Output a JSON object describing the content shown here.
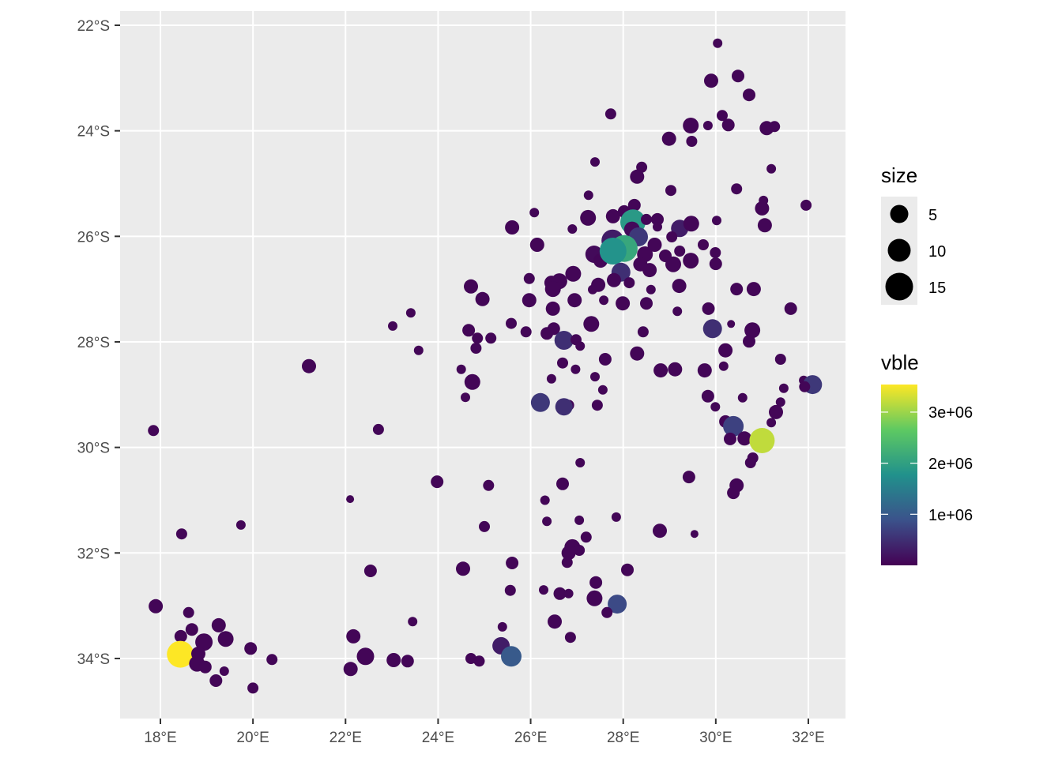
{
  "chart_data": {
    "type": "scatter",
    "title": "",
    "xlabel": "",
    "ylabel": "",
    "xlim": [
      17.15,
      32.8
    ],
    "ylim": [
      -35.15,
      -21.73
    ],
    "grid": true,
    "x_ticks": [
      18,
      20,
      22,
      24,
      26,
      28,
      30,
      32
    ],
    "x_tick_labels": [
      "18°E",
      "20°E",
      "22°E",
      "24°E",
      "26°E",
      "28°E",
      "30°E",
      "32°E"
    ],
    "y_ticks": [
      -22,
      -24,
      -26,
      -28,
      -30,
      -32,
      -34
    ],
    "y_tick_labels": [
      "22°S",
      "24°S",
      "26°S",
      "28°S",
      "30°S",
      "32°S",
      "34°S"
    ],
    "legend_position": "right",
    "size_legend": {
      "title": "size",
      "breaks": [
        5,
        10,
        15
      ],
      "labels": [
        "5",
        "10",
        "15"
      ]
    },
    "color_legend": {
      "title": "vble",
      "breaks": [
        1000000,
        2000000,
        3000000
      ],
      "labels": [
        "1e+06",
        "2e+06",
        "3e+06"
      ],
      "limits": [
        0,
        3540000
      ],
      "palette": [
        "#440154",
        "#3B528B",
        "#21918C",
        "#5EC962",
        "#FDE725"
      ]
    },
    "point_fields": [
      "lon",
      "lat",
      "size",
      "vble"
    ],
    "points": [
      [
        30.04,
        -22.34,
        1,
        50000
      ],
      [
        29.9,
        -23.05,
        3.25,
        50000
      ],
      [
        30.48,
        -22.96,
        2.4,
        50000
      ],
      [
        30.72,
        -23.32,
        2.4,
        50000
      ],
      [
        27.73,
        -23.68,
        1.65,
        50000
      ],
      [
        29.46,
        -23.9,
        4.2,
        50000
      ],
      [
        29.83,
        -23.9,
        1,
        50000
      ],
      [
        30.14,
        -23.71,
        1.65,
        50000
      ],
      [
        30.27,
        -23.89,
        2.4,
        50000
      ],
      [
        31.1,
        -23.95,
        3.25,
        50000
      ],
      [
        31.27,
        -23.92,
        1.65,
        50000
      ],
      [
        28.99,
        -24.15,
        3.25,
        50000
      ],
      [
        29.48,
        -24.2,
        1.65,
        50000
      ],
      [
        27.39,
        -24.59,
        1,
        50000
      ],
      [
        28.4,
        -24.69,
        1.65,
        50000
      ],
      [
        28.3,
        -24.87,
        3.25,
        50000
      ],
      [
        31.2,
        -24.72,
        1,
        50000
      ],
      [
        29.03,
        -25.13,
        1.65,
        50000
      ],
      [
        30.45,
        -25.1,
        1.65,
        50000
      ],
      [
        27.25,
        -25.22,
        1,
        50000
      ],
      [
        31.03,
        -25.32,
        1,
        50000
      ],
      [
        31.0,
        -25.47,
        3.25,
        50000
      ],
      [
        31.95,
        -25.41,
        1.65,
        50000
      ],
      [
        26.08,
        -25.55,
        1,
        50000
      ],
      [
        27.24,
        -25.65,
        4.2,
        50000
      ],
      [
        27.78,
        -25.62,
        3.25,
        50000
      ],
      [
        28.02,
        -25.53,
        2.4,
        50000
      ],
      [
        28.24,
        -25.41,
        2.4,
        50000
      ],
      [
        28.21,
        -25.73,
        12,
        1900000
      ],
      [
        28.5,
        -25.68,
        1.65,
        50000
      ],
      [
        28.74,
        -25.68,
        2.4,
        50000
      ],
      [
        29.22,
        -25.85,
        5.25,
        300000
      ],
      [
        29.47,
        -25.76,
        4.2,
        50000
      ],
      [
        30.02,
        -25.7,
        1,
        50000
      ],
      [
        31.06,
        -25.79,
        3.25,
        50000
      ],
      [
        25.6,
        -25.83,
        3.25,
        50000
      ],
      [
        26.9,
        -25.86,
        1,
        50000
      ],
      [
        28.19,
        -25.87,
        4.2,
        100000
      ],
      [
        28.74,
        -25.82,
        1,
        50000
      ],
      [
        28.33,
        -26.01,
        6.4,
        600000
      ],
      [
        27.77,
        -26.08,
        9,
        300000
      ],
      [
        26.14,
        -26.16,
        3.25,
        50000
      ],
      [
        28.02,
        -26.23,
        13.65,
        2100000
      ],
      [
        28.68,
        -26.16,
        3.25,
        50000
      ],
      [
        29.05,
        -26.01,
        1.65,
        50000
      ],
      [
        29.22,
        -26.28,
        1.65,
        50000
      ],
      [
        29.73,
        -26.16,
        1.65,
        50000
      ],
      [
        29.99,
        -26.31,
        1.65,
        50000
      ],
      [
        27.37,
        -26.34,
        5.25,
        100000
      ],
      [
        27.65,
        -26.34,
        2.4,
        50000
      ],
      [
        27.51,
        -26.46,
        3.25,
        50000
      ],
      [
        28.47,
        -26.34,
        4.2,
        50000
      ],
      [
        28.91,
        -26.37,
        2.4,
        50000
      ],
      [
        29.08,
        -26.53,
        4.2,
        50000
      ],
      [
        29.46,
        -26.46,
        4.2,
        50000
      ],
      [
        30.0,
        -26.52,
        2.4,
        50000
      ],
      [
        28.37,
        -26.53,
        3.25,
        50000
      ],
      [
        26.92,
        -26.71,
        4.2,
        50000
      ],
      [
        27.78,
        -26.28,
        13.65,
        1800000
      ],
      [
        27.95,
        -26.68,
        6.4,
        500000
      ],
      [
        27.8,
        -26.83,
        3.25,
        50000
      ],
      [
        28.57,
        -26.64,
        3.25,
        50000
      ],
      [
        28.13,
        -26.88,
        1.65,
        50000
      ],
      [
        26.62,
        -26.85,
        4.2,
        50000
      ],
      [
        26.45,
        -26.88,
        3.25,
        50000
      ],
      [
        25.97,
        -26.8,
        1.65,
        50000
      ],
      [
        24.71,
        -26.95,
        3.25,
        50000
      ],
      [
        27.46,
        -26.92,
        3.25,
        50000
      ],
      [
        27.34,
        -27.01,
        1,
        50000
      ],
      [
        28.6,
        -27.01,
        1,
        50000
      ],
      [
        26.48,
        -27.0,
        4.2,
        50000
      ],
      [
        29.21,
        -26.94,
        3.25,
        50000
      ],
      [
        30.45,
        -27.0,
        2.4,
        50000
      ],
      [
        30.82,
        -27.0,
        3.25,
        50000
      ],
      [
        24.96,
        -27.19,
        3.25,
        50000
      ],
      [
        25.97,
        -27.21,
        3.25,
        50000
      ],
      [
        26.95,
        -27.21,
        3.25,
        50000
      ],
      [
        27.58,
        -27.21,
        1,
        50000
      ],
      [
        27.99,
        -27.27,
        3.25,
        50000
      ],
      [
        28.5,
        -27.27,
        2.4,
        50000
      ],
      [
        26.48,
        -27.37,
        3.25,
        50000
      ],
      [
        29.84,
        -27.37,
        2.4,
        50000
      ],
      [
        31.62,
        -27.37,
        2.4,
        50000
      ],
      [
        23.41,
        -27.45,
        1,
        50000
      ],
      [
        29.17,
        -27.42,
        1,
        50000
      ],
      [
        25.58,
        -27.65,
        1.65,
        50000
      ],
      [
        23.02,
        -27.7,
        1,
        50000
      ],
      [
        27.31,
        -27.66,
        4.2,
        50000
      ],
      [
        24.66,
        -27.78,
        2.4,
        50000
      ],
      [
        26.5,
        -27.75,
        2.4,
        50000
      ],
      [
        25.9,
        -27.81,
        1.65,
        50000
      ],
      [
        26.35,
        -27.84,
        2.4,
        50000
      ],
      [
        28.43,
        -27.81,
        1.65,
        50000
      ],
      [
        29.93,
        -27.75,
        6.4,
        500000
      ],
      [
        30.33,
        -27.66,
        0.45,
        50000
      ],
      [
        30.79,
        -27.78,
        4.2,
        50000
      ],
      [
        25.14,
        -27.93,
        1.65,
        50000
      ],
      [
        24.85,
        -27.93,
        1.65,
        50000
      ],
      [
        26.72,
        -27.97,
        6.4,
        500000
      ],
      [
        26.98,
        -27.96,
        1.65,
        50000
      ],
      [
        30.72,
        -27.99,
        2.4,
        50000
      ],
      [
        23.58,
        -28.16,
        1,
        50000
      ],
      [
        24.82,
        -28.12,
        1.65,
        50000
      ],
      [
        27.07,
        -28.08,
        1,
        50000
      ],
      [
        28.3,
        -28.22,
        3.25,
        50000
      ],
      [
        30.21,
        -28.16,
        3.25,
        50000
      ],
      [
        21.21,
        -28.46,
        3.25,
        50000
      ],
      [
        27.61,
        -28.33,
        2.4,
        50000
      ],
      [
        31.4,
        -28.33,
        1.65,
        50000
      ],
      [
        26.69,
        -28.4,
        1.65,
        50000
      ],
      [
        29.12,
        -28.52,
        3.25,
        50000
      ],
      [
        28.81,
        -28.54,
        3.25,
        50000
      ],
      [
        29.76,
        -28.54,
        3.25,
        50000
      ],
      [
        30.17,
        -28.46,
        1,
        50000
      ],
      [
        24.5,
        -28.52,
        1,
        50000
      ],
      [
        26.97,
        -28.52,
        1,
        50000
      ],
      [
        26.45,
        -28.7,
        1,
        50000
      ],
      [
        27.39,
        -28.66,
        1,
        50000
      ],
      [
        24.74,
        -28.76,
        4.2,
        50000
      ],
      [
        31.9,
        -28.73,
        1,
        50000
      ],
      [
        32.09,
        -28.81,
        6.4,
        600000
      ],
      [
        31.92,
        -28.85,
        1.65,
        50000
      ],
      [
        31.47,
        -28.88,
        1,
        50000
      ],
      [
        27.56,
        -28.91,
        1,
        50000
      ],
      [
        24.59,
        -29.05,
        1,
        50000
      ],
      [
        29.83,
        -29.03,
        2.4,
        50000
      ],
      [
        30.58,
        -29.06,
        1,
        50000
      ],
      [
        31.4,
        -29.14,
        1,
        50000
      ],
      [
        26.21,
        -29.15,
        6.4,
        600000
      ],
      [
        26.82,
        -29.2,
        1.65,
        50000
      ],
      [
        26.72,
        -29.23,
        5.25,
        500000
      ],
      [
        27.44,
        -29.2,
        1.65,
        50000
      ],
      [
        29.99,
        -29.23,
        1,
        50000
      ],
      [
        31.3,
        -29.33,
        3.25,
        50000
      ],
      [
        30.21,
        -29.51,
        2.4,
        50000
      ],
      [
        31.2,
        -29.53,
        1,
        50000
      ],
      [
        30.38,
        -29.6,
        7.65,
        700000
      ],
      [
        17.85,
        -29.68,
        1.65,
        50000
      ],
      [
        22.71,
        -29.66,
        1.65,
        50000
      ],
      [
        30.31,
        -29.84,
        2.4,
        50000
      ],
      [
        30.62,
        -29.83,
        3.25,
        50000
      ],
      [
        31.0,
        -29.87,
        12,
        3200000
      ],
      [
        30.8,
        -30.2,
        1.65,
        50000
      ],
      [
        30.75,
        -30.29,
        1.65,
        50000
      ],
      [
        27.07,
        -30.29,
        1,
        50000
      ],
      [
        23.98,
        -30.65,
        2.4,
        50000
      ],
      [
        29.42,
        -30.56,
        2.4,
        50000
      ],
      [
        25.09,
        -30.72,
        1.65,
        50000
      ],
      [
        26.69,
        -30.69,
        2.4,
        50000
      ],
      [
        30.45,
        -30.72,
        3.25,
        50000
      ],
      [
        30.38,
        -30.86,
        2.4,
        50000
      ],
      [
        22.1,
        -30.98,
        0.45,
        50000
      ],
      [
        26.31,
        -31.0,
        1,
        50000
      ],
      [
        26.35,
        -31.4,
        1,
        50000
      ],
      [
        27.05,
        -31.38,
        1,
        50000
      ],
      [
        27.85,
        -31.32,
        1,
        50000
      ],
      [
        19.74,
        -31.47,
        1,
        50000
      ],
      [
        25.0,
        -31.5,
        1.65,
        50000
      ],
      [
        18.46,
        -31.64,
        1.65,
        50000
      ],
      [
        28.79,
        -31.58,
        3.25,
        50000
      ],
      [
        29.54,
        -31.64,
        0.45,
        50000
      ],
      [
        27.2,
        -31.7,
        1.65,
        50000
      ],
      [
        26.9,
        -31.89,
        4.2,
        50000
      ],
      [
        26.82,
        -32.0,
        3.25,
        50000
      ],
      [
        27.05,
        -31.95,
        1.65,
        50000
      ],
      [
        26.79,
        -32.18,
        1.65,
        50000
      ],
      [
        25.6,
        -32.19,
        2.4,
        50000
      ],
      [
        24.54,
        -32.3,
        3.25,
        50000
      ],
      [
        28.09,
        -32.32,
        2.4,
        50000
      ],
      [
        22.54,
        -32.34,
        2.4,
        50000
      ],
      [
        27.41,
        -32.56,
        2.4,
        50000
      ],
      [
        26.28,
        -32.7,
        1,
        50000
      ],
      [
        25.56,
        -32.71,
        1.65,
        50000
      ],
      [
        26.63,
        -32.77,
        2.4,
        50000
      ],
      [
        26.82,
        -32.77,
        1,
        50000
      ],
      [
        27.38,
        -32.86,
        4.2,
        50000
      ],
      [
        27.87,
        -32.97,
        6.4,
        800000
      ],
      [
        17.9,
        -33.01,
        3.25,
        50000
      ],
      [
        27.65,
        -33.13,
        1.65,
        50000
      ],
      [
        18.61,
        -33.13,
        1.65,
        50000
      ],
      [
        26.52,
        -33.3,
        3.25,
        50000
      ],
      [
        23.45,
        -33.3,
        1,
        50000
      ],
      [
        19.26,
        -33.37,
        3.25,
        50000
      ],
      [
        18.68,
        -33.45,
        2.4,
        50000
      ],
      [
        25.39,
        -33.4,
        1,
        50000
      ],
      [
        26.86,
        -33.6,
        1.65,
        50000
      ],
      [
        22.17,
        -33.58,
        3.25,
        50000
      ],
      [
        18.44,
        -33.58,
        2.4,
        50000
      ],
      [
        19.41,
        -33.63,
        4.2,
        50000
      ],
      [
        18.94,
        -33.69,
        5.25,
        50000
      ],
      [
        25.36,
        -33.76,
        5.25,
        300000
      ],
      [
        19.95,
        -33.81,
        2.4,
        50000
      ],
      [
        18.43,
        -33.92,
        13.65,
        3540000
      ],
      [
        18.82,
        -33.91,
        3.25,
        50000
      ],
      [
        25.58,
        -33.96,
        7.65,
        1000000
      ],
      [
        22.43,
        -33.96,
        5.25,
        50000
      ],
      [
        23.04,
        -34.03,
        3.25,
        50000
      ],
      [
        23.34,
        -34.05,
        2.4,
        50000
      ],
      [
        20.41,
        -34.02,
        1.65,
        50000
      ],
      [
        24.71,
        -34.0,
        1.65,
        50000
      ],
      [
        24.89,
        -34.05,
        1.65,
        50000
      ],
      [
        18.79,
        -34.1,
        4.2,
        50000
      ],
      [
        18.97,
        -34.16,
        2.4,
        50000
      ],
      [
        22.11,
        -34.2,
        3.25,
        50000
      ],
      [
        19.38,
        -34.24,
        1,
        50000
      ],
      [
        19.2,
        -34.42,
        2.4,
        50000
      ],
      [
        20.0,
        -34.56,
        1.65,
        50000
      ]
    ]
  }
}
